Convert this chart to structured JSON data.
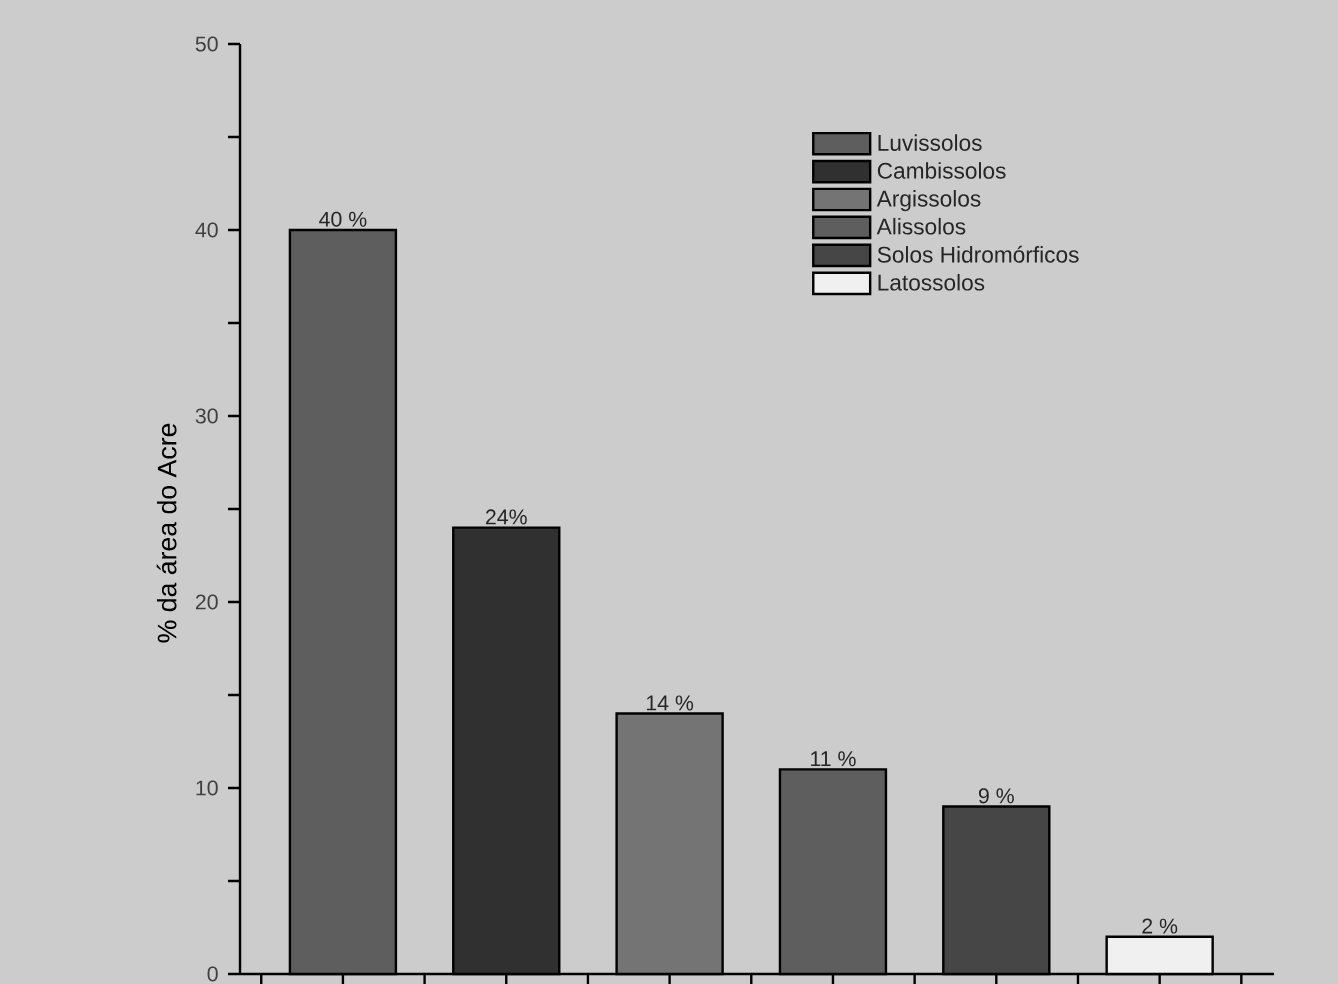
{
  "chart_data": {
    "type": "bar",
    "ylabel": "% da área do Acre",
    "categories": [
      null,
      null,
      null,
      null,
      null,
      null
    ],
    "series": [
      {
        "name": "Luvissolos",
        "color": "#5e5e5e",
        "values": [
          40,
          null,
          null,
          null,
          null,
          null
        ],
        "value_labels": [
          "40 %",
          null,
          null,
          null,
          null,
          null
        ]
      },
      {
        "name": "Cambissolos",
        "color": "#303030",
        "values": [
          null,
          24,
          null,
          null,
          null,
          null
        ],
        "value_labels": [
          null,
          "24%",
          null,
          null,
          null,
          null
        ]
      },
      {
        "name": "Argissolos",
        "color": "#747474",
        "values": [
          null,
          null,
          14,
          null,
          null,
          null
        ],
        "value_labels": [
          null,
          null,
          "14 %",
          null,
          null,
          null
        ]
      },
      {
        "name": "Alissolos",
        "color": "#5e5e5e",
        "values": [
          null,
          null,
          null,
          11,
          null,
          null
        ],
        "value_labels": [
          null,
          null,
          null,
          "11 %",
          null,
          null
        ]
      },
      {
        "name": "Solos Hidromórficos",
        "color": "#464646",
        "values": [
          null,
          null,
          null,
          null,
          9,
          null
        ],
        "value_labels": [
          null,
          null,
          null,
          null,
          "9 %",
          null
        ]
      },
      {
        "name": "Latossolos",
        "color": "#f0f0f0",
        "values": [
          null,
          null,
          null,
          null,
          null,
          2
        ],
        "value_labels": [
          null,
          null,
          null,
          null,
          null,
          "2 %"
        ]
      }
    ],
    "ylim": [
      0,
      50
    ],
    "yticks": [
      0,
      {
        "value": 5,
        "label": null
      },
      10,
      {
        "value": 15,
        "label": null
      },
      20,
      {
        "value": 25,
        "label": null
      },
      30,
      {
        "value": 35,
        "label": null
      },
      40,
      {
        "value": 45,
        "label": null
      },
      50
    ],
    "tick_labels": "y",
    "legend": "top right"
  }
}
